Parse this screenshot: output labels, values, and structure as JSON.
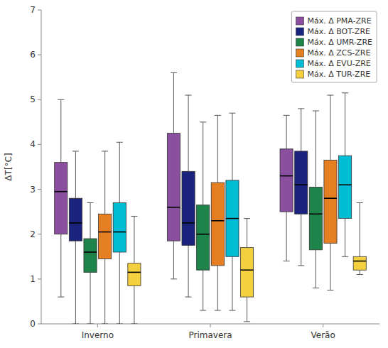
{
  "chart_data": {
    "type": "box",
    "ylabel": "ΔT[°C]",
    "categories": [
      "Inverno",
      "Primavera",
      "Verão"
    ],
    "ylim": [
      0,
      7
    ],
    "yticks": [
      0,
      1,
      2,
      3,
      4,
      5,
      6,
      7
    ],
    "grid": false,
    "legend": "upper right",
    "series": [
      {
        "name": "Máx. Δ PMA-ZRE",
        "color": "#8B4FA0",
        "values": [
          {
            "whisker_low": 0.6,
            "q1": 2.0,
            "median": 2.95,
            "q3": 3.6,
            "whisker_high": 5.0
          },
          {
            "whisker_low": 1.0,
            "q1": 1.85,
            "median": 2.6,
            "q3": 4.25,
            "whisker_high": 5.6
          },
          {
            "whisker_low": 1.4,
            "q1": 2.5,
            "median": 3.3,
            "q3": 3.9,
            "whisker_high": 4.65
          }
        ]
      },
      {
        "name": "Máx. Δ BOT-ZRE",
        "color": "#1a237e",
        "values": [
          {
            "whisker_low": 0.0,
            "q1": 1.85,
            "median": 2.25,
            "q3": 2.8,
            "whisker_high": 3.85
          },
          {
            "whisker_low": 0.6,
            "q1": 1.75,
            "median": 2.25,
            "q3": 3.4,
            "whisker_high": 5.1
          },
          {
            "whisker_low": 1.3,
            "q1": 2.45,
            "median": 3.1,
            "q3": 3.85,
            "whisker_high": 4.8
          }
        ]
      },
      {
        "name": "Máx. Δ UMR-ZRE",
        "color": "#1e8449",
        "values": [
          {
            "whisker_low": 0.0,
            "q1": 1.15,
            "median": 1.6,
            "q3": 1.9,
            "whisker_high": 2.7
          },
          {
            "whisker_low": 0.3,
            "q1": 1.2,
            "median": 2.0,
            "q3": 2.65,
            "whisker_high": 4.5
          },
          {
            "whisker_low": 0.8,
            "q1": 1.65,
            "median": 2.45,
            "q3": 3.05,
            "whisker_high": 4.75
          }
        ]
      },
      {
        "name": "Máx. Δ ZCS-ZRE",
        "color": "#e67e22",
        "values": [
          {
            "whisker_low": 0.0,
            "q1": 1.45,
            "median": 2.05,
            "q3": 2.45,
            "whisker_high": 3.85
          },
          {
            "whisker_low": 0.3,
            "q1": 1.3,
            "median": 2.3,
            "q3": 3.15,
            "whisker_high": 4.65
          },
          {
            "whisker_low": 0.75,
            "q1": 1.8,
            "median": 2.8,
            "q3": 3.65,
            "whisker_high": 5.1
          }
        ]
      },
      {
        "name": "Máx. Δ EVU-ZRE",
        "color": "#00bcd4",
        "values": [
          {
            "whisker_low": 0.0,
            "q1": 1.6,
            "median": 2.05,
            "q3": 2.7,
            "whisker_high": 4.05
          },
          {
            "whisker_low": 0.3,
            "q1": 1.5,
            "median": 2.35,
            "q3": 3.2,
            "whisker_high": 4.7
          },
          {
            "whisker_low": 1.5,
            "q1": 2.35,
            "median": 3.1,
            "q3": 3.75,
            "whisker_high": 5.15
          }
        ]
      },
      {
        "name": "Máx. Δ TUR-ZRE",
        "color": "#f4d03f",
        "values": [
          {
            "whisker_low": 0.0,
            "q1": 0.85,
            "median": 1.15,
            "q3": 1.35,
            "whisker_high": 2.4
          },
          {
            "whisker_low": 0.05,
            "q1": 0.6,
            "median": 1.2,
            "q3": 1.7,
            "whisker_high": 2.35
          },
          {
            "whisker_low": 1.1,
            "q1": 1.2,
            "median": 1.4,
            "q3": 1.5,
            "whisker_high": 2.7
          }
        ]
      }
    ]
  }
}
